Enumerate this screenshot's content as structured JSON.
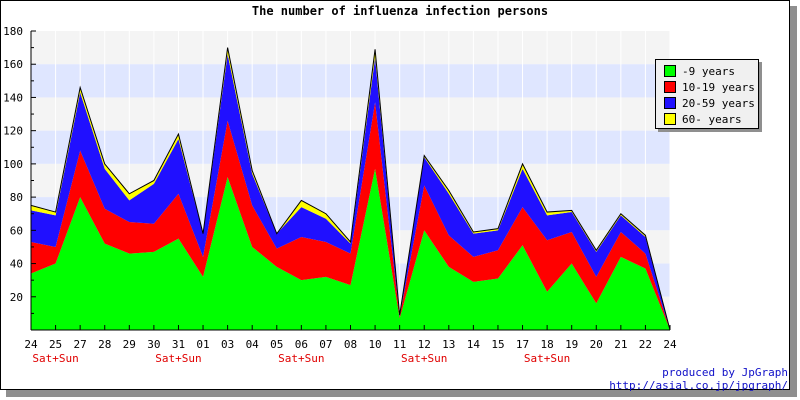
{
  "chart_data": {
    "type": "area",
    "title": "The number of influenza infection persons",
    "stacked": true,
    "categories": [
      "24",
      "25",
      "27",
      "28",
      "29",
      "30",
      "31",
      "01",
      "03",
      "04",
      "05",
      "06",
      "07",
      "08",
      "10",
      "11",
      "12",
      "13",
      "14",
      "15",
      "17",
      "18",
      "19",
      "20",
      "21",
      "22",
      "24"
    ],
    "weekend_marks": [
      {
        "category_index": 1,
        "label": "Sat+Sun"
      },
      {
        "category_index": 6,
        "label": "Sat+Sun"
      },
      {
        "category_index": 11,
        "label": "Sat+Sun"
      },
      {
        "category_index": 16,
        "label": "Sat+Sun"
      },
      {
        "category_index": 21,
        "label": "Sat+Sun"
      }
    ],
    "series": [
      {
        "name": "-9 years",
        "color": "#00ff00",
        "values": [
          34,
          40,
          80,
          52,
          46,
          47,
          55,
          32,
          92,
          50,
          38,
          30,
          32,
          27,
          97,
          7,
          60,
          38,
          29,
          31,
          51,
          23,
          40,
          16,
          44,
          37,
          0
        ]
      },
      {
        "name": "10-19 years",
        "color": "#ff0000",
        "values": [
          19,
          10,
          28,
          21,
          19,
          17,
          27,
          12,
          34,
          25,
          11,
          26,
          21,
          19,
          40,
          1,
          27,
          19,
          15,
          17,
          23,
          31,
          19,
          16,
          15,
          9,
          0
        ]
      },
      {
        "name": "20-59 years",
        "color": "#2010ff",
        "values": [
          19,
          19,
          35,
          24,
          13,
          24,
          33,
          14,
          40,
          19,
          9,
          18,
          14,
          6,
          27,
          1,
          17,
          25,
          14,
          12,
          23,
          15,
          12,
          15,
          10,
          10,
          0
        ]
      },
      {
        "name": "60- years",
        "color": "#ffff00",
        "values": [
          3,
          2,
          3,
          3,
          4,
          2,
          3,
          0,
          4,
          2,
          0,
          4,
          3,
          1,
          5,
          0,
          1,
          2,
          1,
          1,
          3,
          2,
          1,
          1,
          1,
          1,
          0
        ]
      }
    ],
    "ylim": [
      0,
      180
    ],
    "yticks": [
      20,
      40,
      60,
      80,
      100,
      120,
      140,
      160,
      180
    ],
    "grid": true,
    "legend_position": "top-right"
  },
  "credit": {
    "line1": "produced by JpGraph",
    "line2": "http://asial.co.jp/jpgraph/"
  }
}
